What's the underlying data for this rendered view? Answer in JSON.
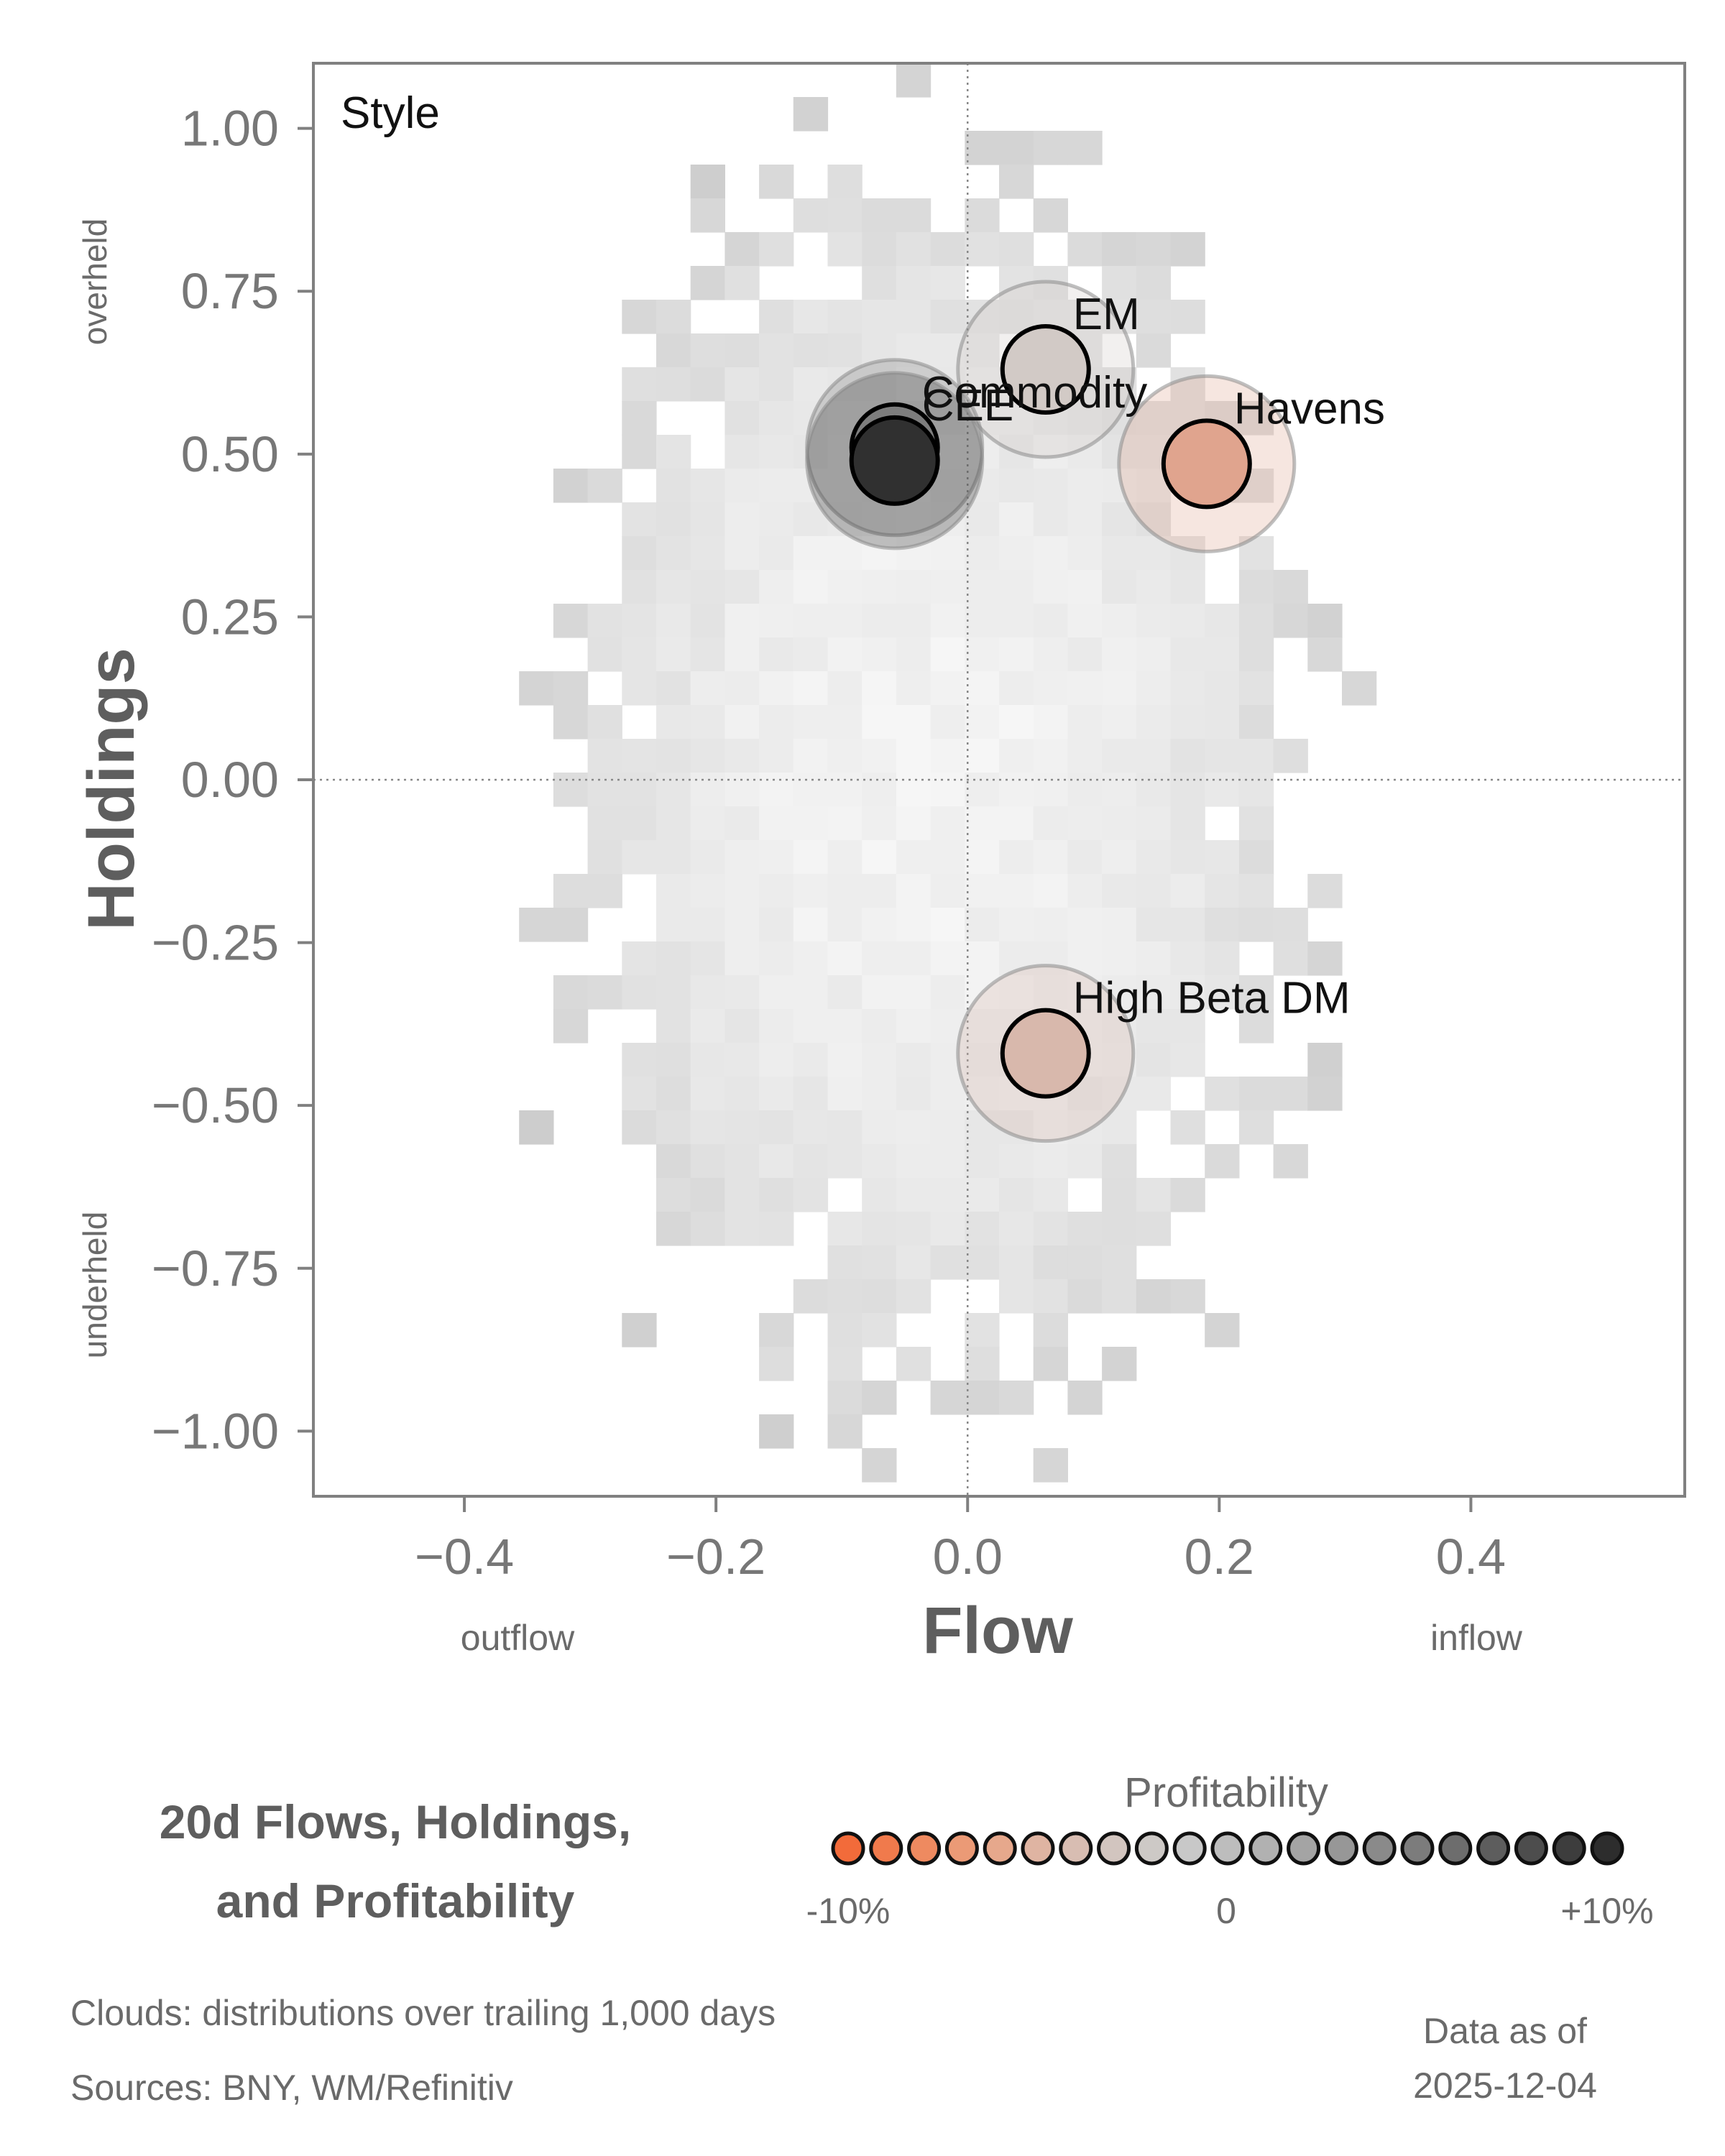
{
  "chart_data": {
    "type": "scatter",
    "panel_label": "Style",
    "xlabel": "Flow",
    "ylabel": "Holdings",
    "xlim": [
      -0.52,
      0.57
    ],
    "ylim": [
      -1.1,
      1.1
    ],
    "x_ticks": [
      -0.4,
      -0.2,
      0.0,
      0.2,
      0.4
    ],
    "x_tick_labels": [
      "−0.4",
      "−0.2",
      "0.0",
      "0.2",
      "0.4"
    ],
    "y_ticks": [
      1.0,
      0.75,
      0.5,
      0.25,
      0.0,
      -0.25,
      -0.5,
      -0.75,
      -1.0
    ],
    "y_tick_labels": [
      "1.00",
      "0.75",
      "0.50",
      "0.25",
      "0.00",
      "−0.25",
      "−0.50",
      "−0.75",
      "−1.00"
    ],
    "x_annotations": {
      "left": "outflow",
      "right": "inflow"
    },
    "y_annotations": {
      "top": "overheld",
      "bottom": "underheld"
    },
    "points": [
      {
        "label": "EM",
        "x": 0.062,
        "y": 0.63,
        "profitability": 0.5,
        "color": "#d2cac6"
      },
      {
        "label": "Commodity",
        "x": -0.058,
        "y": 0.51,
        "profitability": 7,
        "color": "#7d7d7d"
      },
      {
        "label": "CEE",
        "x": -0.058,
        "y": 0.49,
        "profitability": 10,
        "color": "#303030"
      },
      {
        "label": "Havens",
        "x": 0.19,
        "y": 0.485,
        "profitability": -6,
        "color": "#e0a48e"
      },
      {
        "label": "High Beta DM",
        "x": 0.062,
        "y": -0.42,
        "profitability": -3,
        "color": "#d8b8ac"
      }
    ],
    "background": "2D histogram clouds of trailing 1,000-day flow/holdings distributions"
  },
  "title": {
    "line1": "20d Flows, Holdings,",
    "line2": "and Profitability"
  },
  "legend": {
    "title": "Profitability",
    "min_label": "-10%",
    "mid_label": "0",
    "max_label": "+10%",
    "colors": [
      "#f26b3a",
      "#f07a4c",
      "#ee8a60",
      "#eb9a76",
      "#e6a88c",
      "#dfb4a2",
      "#d8bdb2",
      "#d2c5bf",
      "#cdc9c6",
      "#c8c8c8",
      "#bdbdbd",
      "#b1b1b1",
      "#a4a4a4",
      "#979797",
      "#8a8a8a",
      "#7c7c7c",
      "#6d6d6d",
      "#5d5d5d",
      "#4d4d4d",
      "#3d3d3d",
      "#2d2d2d"
    ]
  },
  "footer": {
    "clouds": "Clouds:  distributions over trailing 1,000 days",
    "sources": "Sources:  BNY, WM/Refinitiv",
    "asof_label": "Data as of",
    "asof_date": "2025-12-04"
  }
}
